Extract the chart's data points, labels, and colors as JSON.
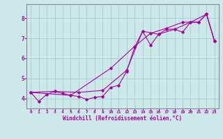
{
  "xlabel": "Windchill (Refroidissement éolien,°C)",
  "bg_color": "#cce8e8",
  "line_color": "#aa00aa",
  "xlim": [
    -0.5,
    23.5
  ],
  "ylim": [
    3.5,
    8.7
  ],
  "yticks": [
    4,
    5,
    6,
    7,
    8
  ],
  "xticks": [
    0,
    1,
    2,
    3,
    4,
    5,
    6,
    7,
    8,
    9,
    10,
    11,
    12,
    13,
    14,
    15,
    16,
    17,
    18,
    19,
    20,
    21,
    22,
    23
  ],
  "series1": [
    [
      0,
      4.3
    ],
    [
      1,
      3.85
    ],
    [
      2,
      4.2
    ],
    [
      3,
      4.35
    ],
    [
      4,
      4.25
    ],
    [
      5,
      4.15
    ],
    [
      6,
      4.1
    ],
    [
      7,
      3.95
    ],
    [
      8,
      4.05
    ],
    [
      9,
      4.1
    ],
    [
      10,
      4.55
    ],
    [
      11,
      4.65
    ],
    [
      12,
      5.35
    ],
    [
      13,
      6.55
    ],
    [
      14,
      7.35
    ],
    [
      15,
      6.65
    ],
    [
      16,
      7.2
    ],
    [
      17,
      7.45
    ],
    [
      18,
      7.45
    ],
    [
      19,
      7.3
    ],
    [
      20,
      7.8
    ],
    [
      21,
      7.8
    ],
    [
      22,
      8.2
    ],
    [
      23,
      6.85
    ]
  ],
  "series2": [
    [
      0,
      4.3
    ],
    [
      3,
      4.35
    ],
    [
      6,
      4.3
    ],
    [
      9,
      4.4
    ],
    [
      12,
      5.4
    ],
    [
      14,
      7.35
    ],
    [
      16,
      7.2
    ],
    [
      18,
      7.45
    ],
    [
      20,
      7.8
    ],
    [
      22,
      8.2
    ],
    [
      23,
      6.85
    ]
  ],
  "series3": [
    [
      0,
      4.3
    ],
    [
      5,
      4.15
    ],
    [
      10,
      5.5
    ],
    [
      13,
      6.6
    ],
    [
      15,
      7.25
    ],
    [
      17,
      7.5
    ],
    [
      19,
      7.8
    ],
    [
      21,
      7.8
    ],
    [
      22,
      8.2
    ],
    [
      23,
      6.85
    ]
  ]
}
